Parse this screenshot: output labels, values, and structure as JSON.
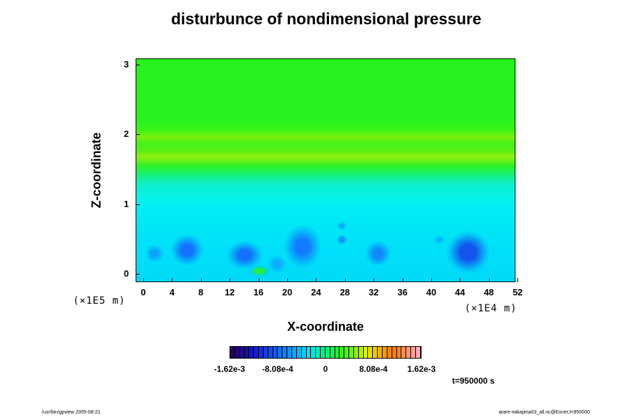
{
  "chart_data": {
    "type": "heatmap",
    "title": "disturbunce of nondimensional pressure",
    "xlabel": "X-coordinate",
    "ylabel": "Z-coordinate",
    "x_scale": "(×1E4 m)",
    "y_scale": "(×1E5 m)",
    "x_ticks": [
      "0",
      "4",
      "8",
      "12",
      "16",
      "20",
      "24",
      "28",
      "32",
      "36",
      "40",
      "44",
      "48",
      "52"
    ],
    "y_ticks": [
      "0",
      "1",
      "2",
      "3"
    ],
    "xlim": [
      -1,
      52
    ],
    "ylim": [
      -0.12,
      3.08
    ],
    "colorbar": {
      "range": [
        -0.00162,
        0.00162
      ],
      "labels": [
        "-1.62e-3",
        "-8.08e-4",
        "0",
        "8.08e-4",
        "1.62e-3"
      ],
      "label_values": [
        -0.00162,
        -0.000808,
        0,
        0.000808,
        0.00162
      ],
      "n_levels": 40
    },
    "features": [
      {
        "x": 1.5,
        "z": 0.3,
        "rx": 1.2,
        "rz": 0.12,
        "level": -0.00055
      },
      {
        "x": 6,
        "z": 0.35,
        "rx": 2.2,
        "rz": 0.22,
        "level": -0.00075
      },
      {
        "x": 14,
        "z": 0.28,
        "rx": 2.4,
        "rz": 0.2,
        "level": -0.00075
      },
      {
        "x": 18.5,
        "z": 0.15,
        "rx": 1.2,
        "rz": 0.12,
        "level": -0.0005
      },
      {
        "x": 22,
        "z": 0.4,
        "rx": 2.5,
        "rz": 0.3,
        "level": -0.0007
      },
      {
        "x": 27.5,
        "z": 0.5,
        "rx": 0.7,
        "rz": 0.07,
        "level": -0.0006
      },
      {
        "x": 27.5,
        "z": 0.7,
        "rx": 0.6,
        "rz": 0.06,
        "level": -0.0005
      },
      {
        "x": 32.5,
        "z": 0.3,
        "rx": 1.7,
        "rz": 0.18,
        "level": -0.00065
      },
      {
        "x": 41,
        "z": 0.5,
        "rx": 0.7,
        "rz": 0.06,
        "level": -0.00045
      },
      {
        "x": 45,
        "z": 0.32,
        "rx": 3.0,
        "rz": 0.3,
        "level": -0.0009
      },
      {
        "x": 16,
        "z": 0.05,
        "rx": 1.4,
        "rz": 0.08,
        "level": 0.0002
      }
    ]
  },
  "time_label": "t=950000 s",
  "footer": {
    "left": "/usr/bin/gpview 2005-08-21",
    "right": "arare-nakajima03_all.nc@Exner,t=950000"
  },
  "colors": {
    "negative_strong": "#2020c8",
    "background_fill": "#00e5f5",
    "upper_fill": "#28f31f"
  }
}
